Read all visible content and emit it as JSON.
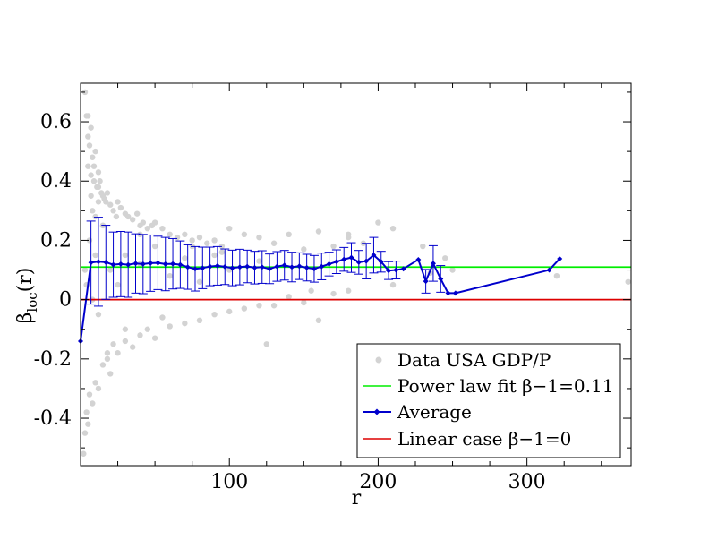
{
  "chart_data": {
    "type": "scatter",
    "title": "",
    "xlabel": "r",
    "ylabel_main": "β",
    "ylabel_sub": "loc",
    "ylabel_tail": "(r)",
    "xlim": [
      0,
      370
    ],
    "ylim": [
      -0.56,
      0.73
    ],
    "x_ticks": [
      100,
      200,
      300
    ],
    "x_tick_labels": [
      "100",
      "200",
      "300"
    ],
    "y_ticks": [
      -0.4,
      -0.2,
      0,
      0.2,
      0.4,
      0.6
    ],
    "y_tick_labels": [
      "-0.4",
      "-0.2",
      "0",
      "0.2",
      "0.4",
      "0.6"
    ],
    "grid": false,
    "legend_position": "bottom-right",
    "legend": [
      {
        "label": "Data USA GDP/P",
        "style": "points",
        "color": "#d3d3d3"
      },
      {
        "label": "Power law fit β−1=0.11",
        "style": "line",
        "color": "#00ee00"
      },
      {
        "label": "Average",
        "style": "line-marker",
        "color": "#0000cc"
      },
      {
        "label": "Linear case β−1=0",
        "style": "line",
        "color": "#dd0000"
      }
    ],
    "series": [
      {
        "name": "Data USA GDP/P",
        "kind": "scatter",
        "color": "#d3d3d3",
        "x": [
          3,
          4,
          5,
          5,
          6,
          7,
          7,
          8,
          8,
          9,
          10,
          10,
          11,
          12,
          12,
          13,
          14,
          15,
          16,
          17,
          18,
          20,
          22,
          24,
          25,
          27,
          30,
          32,
          35,
          38,
          40,
          42,
          45,
          48,
          50,
          55,
          60,
          65,
          70,
          75,
          80,
          85,
          90,
          95,
          100,
          110,
          120,
          130,
          140,
          150,
          160,
          170,
          180,
          190,
          200,
          210,
          230,
          245,
          2,
          3,
          4,
          5,
          6,
          8,
          10,
          12,
          15,
          18,
          20,
          25,
          30,
          35,
          40,
          45,
          50,
          60,
          70,
          80,
          90,
          100,
          110,
          120,
          130,
          140,
          150,
          160,
          170,
          180,
          3,
          4,
          6,
          8,
          10,
          12,
          15,
          20,
          25,
          30,
          40,
          50,
          60,
          70,
          80,
          90,
          100,
          120,
          5,
          7,
          9,
          12,
          15,
          18,
          22,
          30,
          40,
          55,
          75,
          95,
          125,
          155,
          180,
          210,
          235,
          250,
          320,
          368
        ],
        "y": [
          0.7,
          0.62,
          0.55,
          0.45,
          0.52,
          0.42,
          0.35,
          0.48,
          0.3,
          0.4,
          0.5,
          0.28,
          0.38,
          0.43,
          0.33,
          0.4,
          0.36,
          0.35,
          0.34,
          0.33,
          0.36,
          0.32,
          0.3,
          0.28,
          0.33,
          0.31,
          0.29,
          0.28,
          0.27,
          0.29,
          0.25,
          0.26,
          0.24,
          0.25,
          0.26,
          0.24,
          0.22,
          0.21,
          0.22,
          0.2,
          0.21,
          0.19,
          0.2,
          0.18,
          0.24,
          0.22,
          0.21,
          0.19,
          0.22,
          0.17,
          0.23,
          0.18,
          0.21,
          0.19,
          0.26,
          0.24,
          0.18,
          0.14,
          -0.52,
          -0.45,
          -0.38,
          -0.42,
          -0.32,
          -0.35,
          -0.28,
          -0.3,
          -0.22,
          -0.18,
          -0.25,
          -0.18,
          -0.14,
          -0.16,
          -0.12,
          -0.1,
          -0.13,
          -0.09,
          -0.08,
          -0.07,
          -0.05,
          -0.04,
          -0.03,
          -0.02,
          -0.02,
          0.01,
          -0.01,
          -0.07,
          0.02,
          0.03,
          0.1,
          0.05,
          0.2,
          0.0,
          0.15,
          -0.05,
          0.25,
          0.1,
          0.05,
          0.15,
          0.12,
          0.18,
          0.08,
          0.14,
          0.06,
          0.15,
          0.1,
          0.13,
          0.62,
          0.58,
          0.45,
          0.38,
          0.25,
          -0.2,
          -0.15,
          -0.1,
          0.22,
          -0.06,
          0.18,
          0.16,
          -0.15,
          0.03,
          0.22,
          0.05,
          0.09,
          0.1,
          0.08,
          0.06
        ]
      },
      {
        "name": "Power law fit β−1=0.11",
        "kind": "hline",
        "color": "#00ee00",
        "y": 0.11
      },
      {
        "name": "Linear case β−1=0",
        "kind": "hline",
        "color": "#dd0000",
        "y": 0
      },
      {
        "name": "Average",
        "kind": "line-errorbar",
        "color": "#0000cc",
        "x": [
          0,
          7,
          12,
          17,
          22,
          27,
          32,
          37,
          42,
          47,
          52,
          57,
          62,
          67,
          72,
          77,
          82,
          87,
          92,
          97,
          102,
          107,
          112,
          117,
          122,
          127,
          132,
          137,
          142,
          147,
          152,
          157,
          162,
          167,
          172,
          177,
          182,
          187,
          192,
          197,
          202,
          207,
          212,
          217,
          227,
          232,
          237,
          242,
          247,
          252,
          315,
          322
        ],
        "y": [
          -0.14,
          0.125,
          0.128,
          0.126,
          0.118,
          0.12,
          0.118,
          0.122,
          0.12,
          0.123,
          0.124,
          0.12,
          0.121,
          0.118,
          0.11,
          0.104,
          0.107,
          0.112,
          0.114,
          0.111,
          0.107,
          0.11,
          0.112,
          0.108,
          0.11,
          0.104,
          0.112,
          0.116,
          0.11,
          0.113,
          0.108,
          0.104,
          0.112,
          0.12,
          0.128,
          0.136,
          0.142,
          0.126,
          0.13,
          0.15,
          0.128,
          0.098,
          0.1,
          0.104,
          0.135,
          0.062,
          0.122,
          0.07,
          0.022,
          0.022,
          0.1,
          0.138
        ],
        "err": [
          0,
          0.14,
          0.15,
          0.125,
          0.11,
          0.11,
          0.11,
          0.1,
          0.1,
          0.095,
          0.09,
          0.09,
          0.085,
          0.08,
          0.075,
          0.075,
          0.07,
          0.065,
          0.065,
          0.06,
          0.06,
          0.06,
          0.055,
          0.055,
          0.055,
          0.05,
          0.05,
          0.05,
          0.05,
          0.045,
          0.045,
          0.045,
          0.045,
          0.04,
          0.04,
          0.04,
          0.05,
          0.04,
          0.06,
          0.06,
          0.035,
          0.03,
          0.03,
          0,
          0,
          0.04,
          0.06,
          0.045,
          0,
          0,
          0,
          0
        ]
      }
    ]
  }
}
